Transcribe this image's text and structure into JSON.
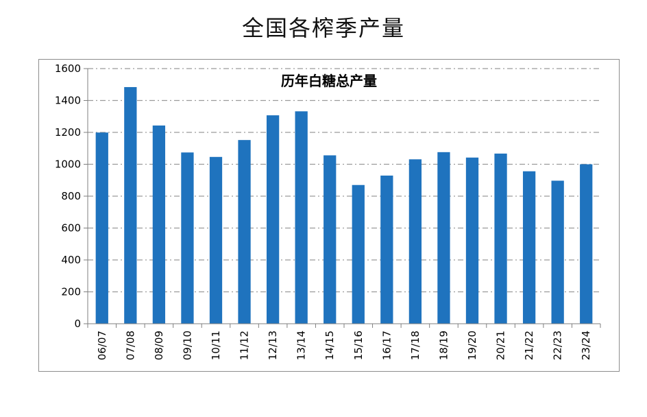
{
  "heading": "全国各榨季产量",
  "chart_data": {
    "type": "bar",
    "title": "历年白糖总产量",
    "xlabel": "",
    "ylabel": "",
    "categories": [
      "06/07",
      "07/08",
      "08/09",
      "09/10",
      "10/11",
      "11/12",
      "12/13",
      "13/14",
      "14/15",
      "15/16",
      "16/17",
      "17/18",
      "18/19",
      "19/20",
      "20/21",
      "21/22",
      "22/23",
      "23/24"
    ],
    "series": [
      {
        "values": [
          1199,
          1484,
          1243,
          1074,
          1046,
          1152,
          1307,
          1332,
          1056,
          870,
          929,
          1031,
          1076,
          1042,
          1067,
          956,
          897,
          1000
        ]
      }
    ],
    "ylim": [
      0,
      1600
    ],
    "yticks": [
      0,
      200,
      400,
      600,
      800,
      1000,
      1200,
      1400,
      1600
    ],
    "grid": true,
    "legend": "none",
    "bar_color": "#1f73be"
  }
}
